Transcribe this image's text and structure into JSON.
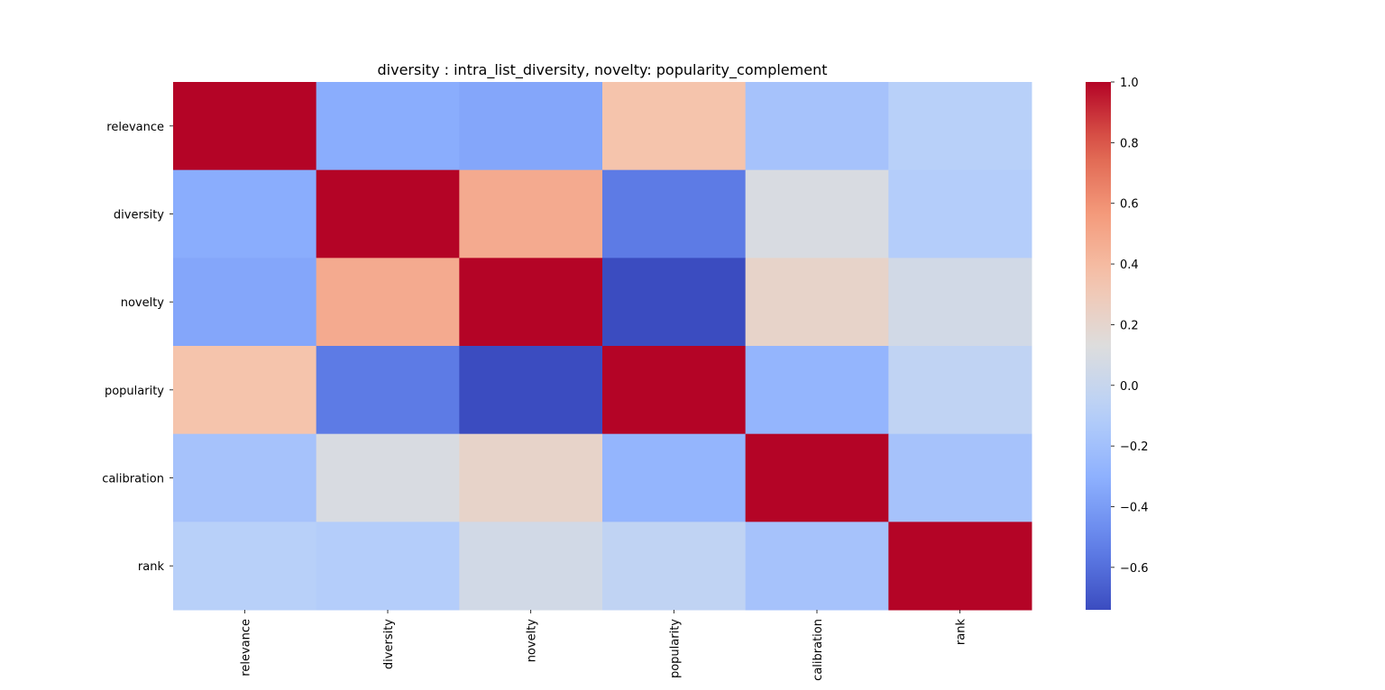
{
  "chart_data": {
    "type": "heatmap",
    "title": "diversity : intra_list_diversity, novelty: popularity_complement",
    "row_labels": [
      "relevance",
      "diversity",
      "novelty",
      "popularity",
      "calibration",
      "rank"
    ],
    "col_labels": [
      "relevance",
      "diversity",
      "novelty",
      "popularity",
      "calibration",
      "rank"
    ],
    "values": [
      [
        1.0,
        -0.32,
        -0.35,
        0.35,
        -0.18,
        -0.09
      ],
      [
        -0.32,
        1.0,
        0.48,
        -0.55,
        0.1,
        -0.11
      ],
      [
        -0.35,
        0.48,
        1.0,
        -0.74,
        0.22,
        0.06
      ],
      [
        0.35,
        -0.55,
        -0.74,
        1.0,
        -0.27,
        -0.04
      ],
      [
        -0.18,
        0.1,
        0.22,
        -0.27,
        1.0,
        -0.18
      ],
      [
        -0.09,
        -0.11,
        0.06,
        -0.04,
        -0.18,
        1.0
      ]
    ],
    "colormap": "coolwarm",
    "vmin": -0.74,
    "vmax": 1.0,
    "colorbar_ticks": [
      1.0,
      0.8,
      0.6,
      0.4,
      0.2,
      0.0,
      -0.2,
      -0.4,
      -0.6
    ],
    "colorbar_tick_labels": [
      "1.0",
      "0.8",
      "0.6",
      "0.4",
      "0.2",
      "0.0",
      "−0.2",
      "−0.4",
      "−0.6"
    ],
    "x_tick_rotation": "vertical",
    "grid": false
  }
}
